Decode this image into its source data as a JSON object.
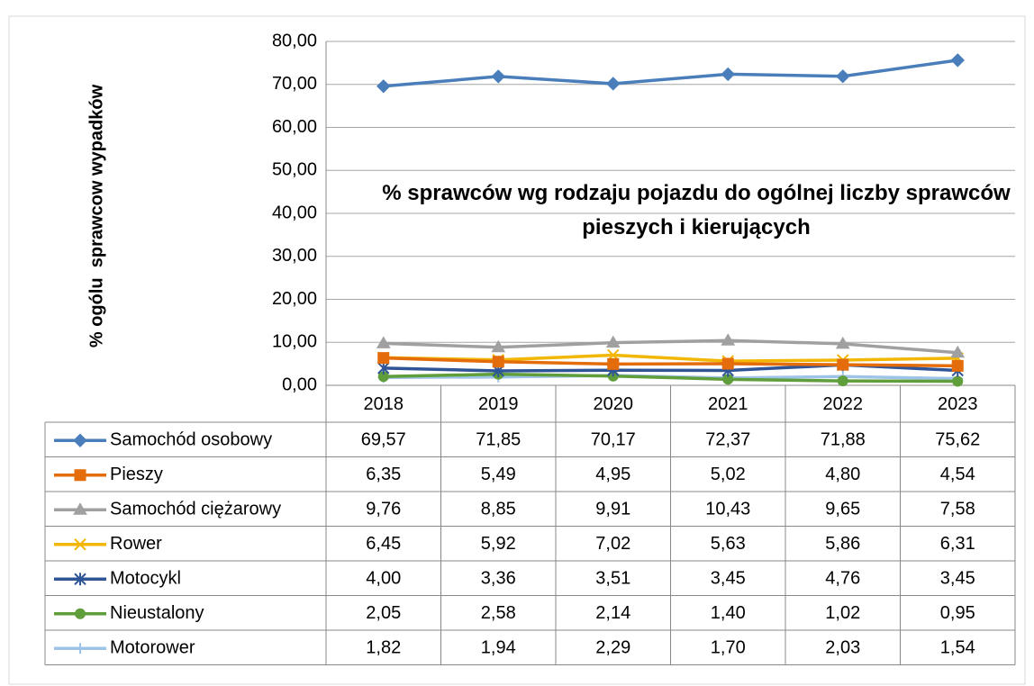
{
  "chart_data": {
    "type": "line",
    "title": "% sprawców wg rodzaju pojazdu do ogólnej liczby sprawców pieszych i kierujących",
    "y_label": "% ogólu  sprawcow wypadków",
    "categories": [
      "2018",
      "2019",
      "2020",
      "2021",
      "2022",
      "2023"
    ],
    "ylim": [
      0,
      80
    ],
    "yticks": [
      {
        "value": 0,
        "label": "0,00"
      },
      {
        "value": 10,
        "label": "10,00"
      },
      {
        "value": 20,
        "label": "20,00"
      },
      {
        "value": 30,
        "label": "30,00"
      },
      {
        "value": 40,
        "label": "40,00"
      },
      {
        "value": 50,
        "label": "50,00"
      },
      {
        "value": 60,
        "label": "60,00"
      },
      {
        "value": 70,
        "label": "70,00"
      },
      {
        "value": 80,
        "label": "80,00"
      }
    ],
    "grid": true,
    "series": [
      {
        "name": "Samochód osobowy",
        "color": "#4a7ebb",
        "marker": "diamond",
        "values": [
          69.57,
          71.85,
          70.17,
          72.37,
          71.88,
          75.62
        ],
        "value_labels": [
          "69,57",
          "71,85",
          "70,17",
          "72,37",
          "71,88",
          "75,62"
        ]
      },
      {
        "name": "Pieszy",
        "color": "#e46c0a",
        "marker": "square",
        "values": [
          6.35,
          5.49,
          4.95,
          5.02,
          4.8,
          4.54
        ],
        "value_labels": [
          "6,35",
          "5,49",
          "4,95",
          "5,02",
          "4,80",
          "4,54"
        ]
      },
      {
        "name": "Samochód ciężarowy",
        "color": "#a0a0a0",
        "marker": "triangle",
        "values": [
          9.76,
          8.85,
          9.91,
          10.43,
          9.65,
          7.58
        ],
        "value_labels": [
          "9,76",
          "8,85",
          "9,91",
          "10,43",
          "9,65",
          "7,58"
        ]
      },
      {
        "name": "Rower",
        "color": "#f2b705",
        "marker": "x",
        "values": [
          6.45,
          5.92,
          7.02,
          5.63,
          5.86,
          6.31
        ],
        "value_labels": [
          "6,45",
          "5,92",
          "7,02",
          "5,63",
          "5,86",
          "6,31"
        ]
      },
      {
        "name": "Motocykl",
        "color": "#2f5597",
        "marker": "asterisk",
        "values": [
          4.0,
          3.36,
          3.51,
          3.45,
          4.76,
          3.45
        ],
        "value_labels": [
          "4,00",
          "3,36",
          "3,51",
          "3,45",
          "4,76",
          "3,45"
        ]
      },
      {
        "name": "Nieustalony",
        "color": "#5f9e3a",
        "marker": "circle",
        "values": [
          2.05,
          2.58,
          2.14,
          1.4,
          1.02,
          0.95
        ],
        "value_labels": [
          "2,05",
          "2,58",
          "2,14",
          "1,40",
          "1,02",
          "0,95"
        ]
      },
      {
        "name": "Motorower",
        "color": "#9dc3e6",
        "marker": "plus",
        "values": [
          1.82,
          1.94,
          2.29,
          1.7,
          2.03,
          1.54
        ],
        "value_labels": [
          "1,82",
          "1,94",
          "2,29",
          "1,70",
          "2,03",
          "1,54"
        ]
      }
    ]
  }
}
